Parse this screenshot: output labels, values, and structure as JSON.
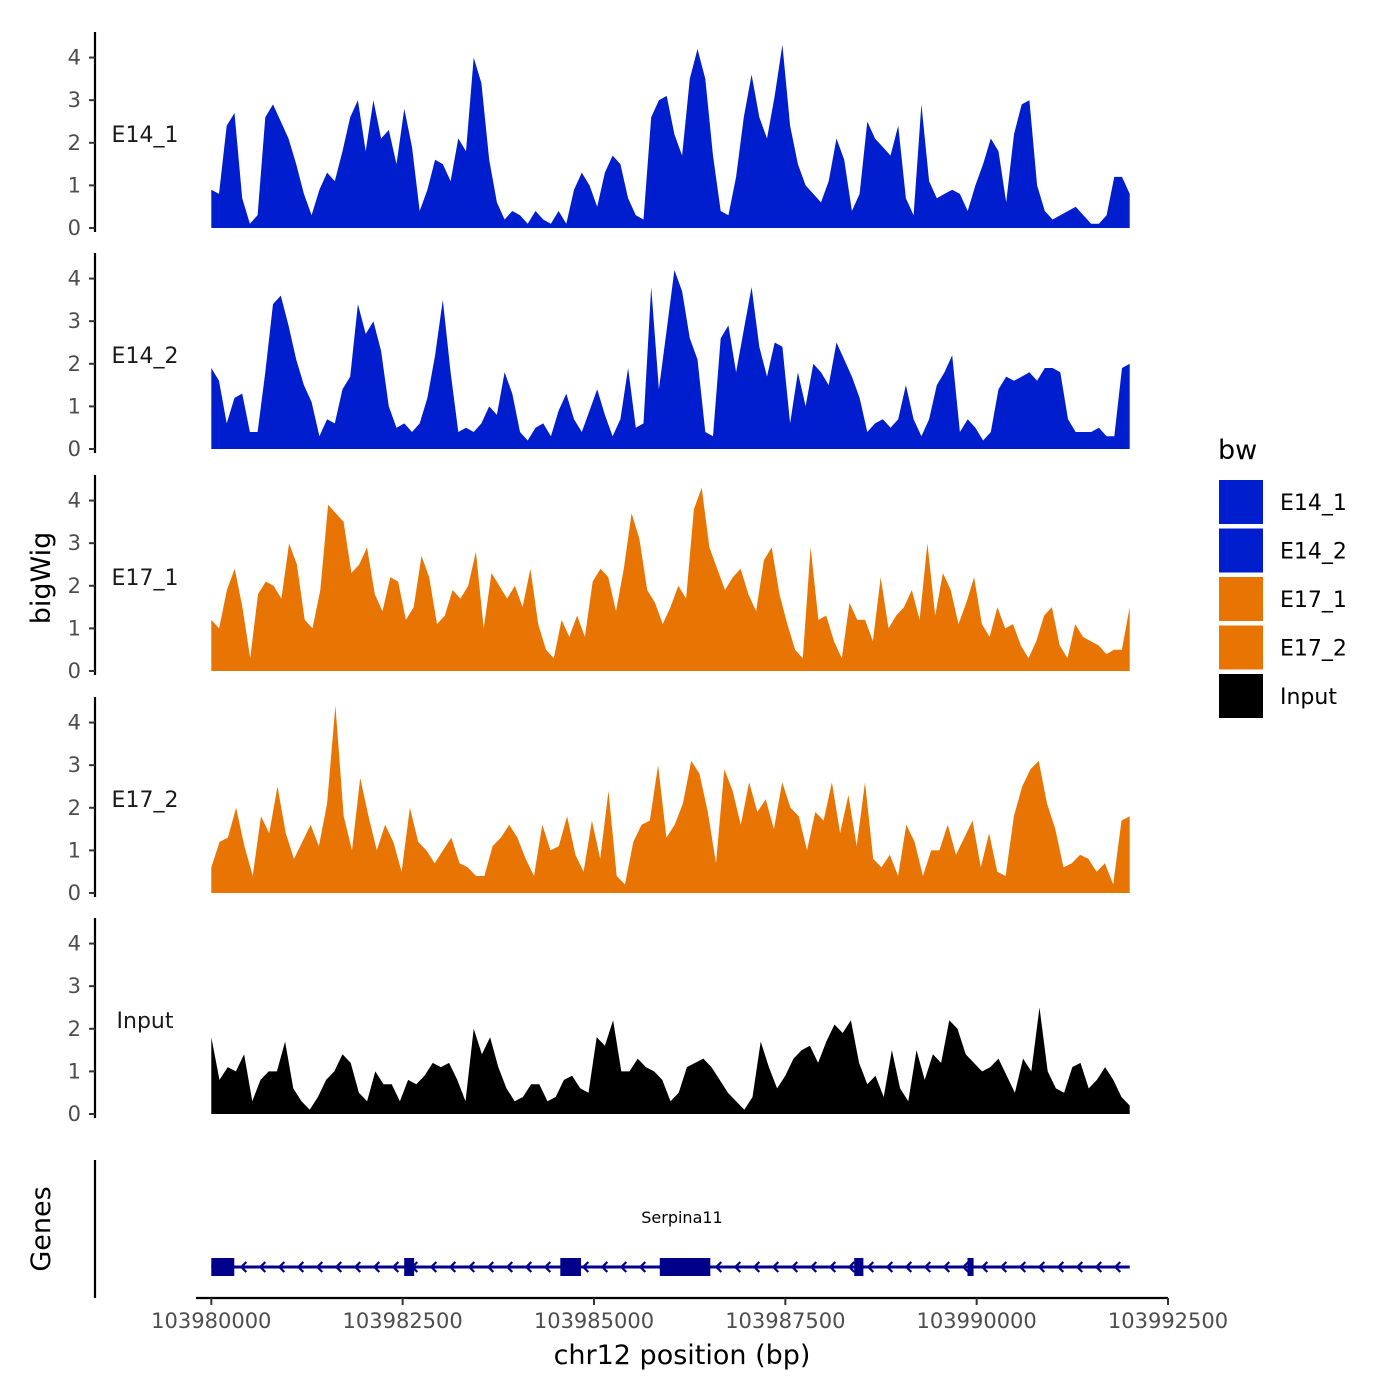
{
  "chart_data": {
    "type": "area",
    "ylabel": "bigWig",
    "xlabel": "chr12 position (bp)",
    "y_ticks": [
      0,
      1,
      2,
      3,
      4
    ],
    "ylim": [
      0,
      4.6
    ],
    "x_range": [
      103980000,
      103992000
    ],
    "xlim": [
      103979800,
      103992500
    ],
    "x_ticks": [
      103980000,
      103982500,
      103985000,
      103987500,
      103990000,
      103992500
    ],
    "x_tick_labels": [
      "103980000",
      "103982500",
      "103985000",
      "103987500",
      "103990000",
      "103992500"
    ],
    "legend": {
      "title": "bw",
      "entries": [
        {
          "label": "E14_1",
          "color": "#001ecd"
        },
        {
          "label": "E14_2",
          "color": "#001ecd"
        },
        {
          "label": "E17_1",
          "color": "#e87503"
        },
        {
          "label": "E17_2",
          "color": "#e87503"
        },
        {
          "label": "Input",
          "color": "#000000"
        }
      ]
    },
    "series": [
      {
        "name": "E14_1",
        "label": "E14_1",
        "color": "#001ecd",
        "values": [
          0.9,
          0.8,
          2.4,
          2.7,
          0.7,
          0.1,
          0.3,
          2.6,
          2.9,
          2.5,
          2.1,
          1.5,
          0.8,
          0.3,
          0.9,
          1.3,
          1.1,
          1.8,
          2.6,
          3.0,
          1.8,
          3.0,
          2.1,
          2.3,
          1.5,
          2.8,
          1.9,
          0.4,
          0.9,
          1.6,
          1.5,
          1.1,
          2.1,
          1.8,
          4.0,
          3.4,
          1.6,
          0.6,
          0.2,
          0.4,
          0.3,
          0.1,
          0.4,
          0.2,
          0.1,
          0.4,
          0.1,
          0.9,
          1.3,
          1.0,
          0.5,
          1.3,
          1.7,
          1.5,
          0.7,
          0.3,
          0.2,
          2.6,
          3.0,
          3.1,
          2.2,
          1.7,
          3.5,
          4.2,
          3.5,
          1.7,
          0.4,
          0.3,
          1.2,
          2.6,
          3.6,
          2.6,
          2.1,
          3.1,
          4.3,
          2.4,
          1.5,
          1.0,
          0.8,
          0.6,
          1.1,
          2.1,
          1.6,
          0.4,
          0.8,
          2.5,
          2.1,
          1.9,
          1.7,
          2.4,
          0.7,
          0.3,
          2.9,
          1.1,
          0.7,
          0.8,
          0.9,
          0.8,
          0.4,
          1.0,
          1.5,
          2.1,
          1.8,
          0.6,
          2.2,
          2.9,
          3.0,
          1.0,
          0.4,
          0.2,
          0.3,
          0.4,
          0.5,
          0.3,
          0.1,
          0.1,
          0.3,
          1.2,
          1.2,
          0.8
        ]
      },
      {
        "name": "E14_2",
        "label": "E14_2",
        "color": "#001ecd",
        "values": [
          1.9,
          1.6,
          0.6,
          1.2,
          1.3,
          0.4,
          0.4,
          1.8,
          3.4,
          3.6,
          2.9,
          2.1,
          1.5,
          1.1,
          0.3,
          0.7,
          0.6,
          1.4,
          1.7,
          3.4,
          2.7,
          3.0,
          2.3,
          1.0,
          0.5,
          0.6,
          0.4,
          0.6,
          1.2,
          2.2,
          3.5,
          1.8,
          0.4,
          0.5,
          0.4,
          0.6,
          1.0,
          0.8,
          1.8,
          1.3,
          0.4,
          0.2,
          0.5,
          0.6,
          0.3,
          0.9,
          1.3,
          0.7,
          0.4,
          0.9,
          1.4,
          0.8,
          0.3,
          0.7,
          1.9,
          0.5,
          0.6,
          3.8,
          1.4,
          2.8,
          4.2,
          3.7,
          2.6,
          2.1,
          0.4,
          0.3,
          2.6,
          2.9,
          1.8,
          2.8,
          3.8,
          2.4,
          1.7,
          2.5,
          2.4,
          0.6,
          1.8,
          1.0,
          2.0,
          1.8,
          1.5,
          2.5,
          2.1,
          1.7,
          1.2,
          0.4,
          0.6,
          0.7,
          0.5,
          0.7,
          1.5,
          0.7,
          0.3,
          0.7,
          1.5,
          1.8,
          2.2,
          0.4,
          0.7,
          0.5,
          0.2,
          0.4,
          1.4,
          1.7,
          1.6,
          1.7,
          1.8,
          1.6,
          1.9,
          1.9,
          1.8,
          0.7,
          0.4,
          0.4,
          0.4,
          0.5,
          0.3,
          0.3,
          1.9,
          2.0
        ]
      },
      {
        "name": "E17_1",
        "label": "E17_1",
        "color": "#e87503",
        "values": [
          1.2,
          1.0,
          1.9,
          2.4,
          1.5,
          0.3,
          1.8,
          2.1,
          2.0,
          1.7,
          3.0,
          2.5,
          1.2,
          1.0,
          1.9,
          3.9,
          3.7,
          3.5,
          2.3,
          2.5,
          2.9,
          1.8,
          1.4,
          2.2,
          2.1,
          1.2,
          1.5,
          2.7,
          2.2,
          1.1,
          1.3,
          1.9,
          1.7,
          2.0,
          2.8,
          1.0,
          2.3,
          2.0,
          1.7,
          2.0,
          1.5,
          2.4,
          1.1,
          0.5,
          0.3,
          1.2,
          0.8,
          1.3,
          0.8,
          2.1,
          2.4,
          2.2,
          1.4,
          2.4,
          3.7,
          3.1,
          1.9,
          1.6,
          1.1,
          1.5,
          2.0,
          1.7,
          3.8,
          4.3,
          2.9,
          2.4,
          1.9,
          2.2,
          2.4,
          1.8,
          1.4,
          2.6,
          2.9,
          1.8,
          1.1,
          0.5,
          0.3,
          2.9,
          1.2,
          1.3,
          0.7,
          0.3,
          1.6,
          1.2,
          1.2,
          0.7,
          2.2,
          1.0,
          1.3,
          1.5,
          1.9,
          1.2,
          3.0,
          1.3,
          2.3,
          1.9,
          1.1,
          1.6,
          2.2,
          1.1,
          0.8,
          1.5,
          1.0,
          1.1,
          0.6,
          0.3,
          0.7,
          1.3,
          1.5,
          0.6,
          0.3,
          1.1,
          0.8,
          0.7,
          0.6,
          0.4,
          0.5,
          0.5,
          1.5
        ]
      },
      {
        "name": "E17_2",
        "label": "E17_2",
        "color": "#e87503",
        "values": [
          0.6,
          1.2,
          1.3,
          2.0,
          1.1,
          0.4,
          1.8,
          1.4,
          2.5,
          1.4,
          0.8,
          1.2,
          1.6,
          1.1,
          2.1,
          4.4,
          1.8,
          1.0,
          2.7,
          1.8,
          1.0,
          1.6,
          1.2,
          0.5,
          2.0,
          1.2,
          1.0,
          0.7,
          1.0,
          1.3,
          0.7,
          0.6,
          0.4,
          0.4,
          1.1,
          1.3,
          1.6,
          1.3,
          0.8,
          0.4,
          1.6,
          1.0,
          1.1,
          1.8,
          0.9,
          0.5,
          1.7,
          0.8,
          2.4,
          0.4,
          0.2,
          1.2,
          1.6,
          1.7,
          3.0,
          1.3,
          1.6,
          2.1,
          3.1,
          2.8,
          1.9,
          0.7,
          2.9,
          2.4,
          1.6,
          2.6,
          1.9,
          2.2,
          1.5,
          2.6,
          2.0,
          1.8,
          1.0,
          1.9,
          1.7,
          2.6,
          1.4,
          2.3,
          1.1,
          2.6,
          0.8,
          0.6,
          0.9,
          0.4,
          1.6,
          1.2,
          0.4,
          1.0,
          1.0,
          1.6,
          0.9,
          1.3,
          1.7,
          0.6,
          1.4,
          0.5,
          0.4,
          1.8,
          2.5,
          2.9,
          3.1,
          2.1,
          1.5,
          0.6,
          0.7,
          0.9,
          0.8,
          0.5,
          0.7,
          0.2,
          1.7,
          1.8
        ]
      },
      {
        "name": "Input",
        "label": "Input",
        "color": "#000000",
        "values": [
          1.8,
          0.8,
          1.1,
          1.0,
          1.4,
          0.3,
          0.8,
          1.0,
          1.0,
          1.7,
          0.6,
          0.3,
          0.1,
          0.4,
          0.8,
          1.0,
          1.4,
          1.2,
          0.5,
          0.3,
          1.0,
          0.7,
          0.7,
          0.3,
          0.8,
          0.7,
          0.9,
          1.2,
          1.1,
          1.2,
          0.8,
          0.3,
          2.0,
          1.4,
          1.8,
          1.1,
          0.6,
          0.3,
          0.4,
          0.7,
          0.7,
          0.3,
          0.4,
          0.8,
          0.9,
          0.6,
          0.5,
          1.8,
          1.6,
          2.2,
          1.0,
          1.0,
          1.3,
          1.1,
          1.0,
          0.8,
          0.3,
          0.5,
          1.1,
          1.2,
          1.3,
          1.1,
          0.8,
          0.5,
          0.3,
          0.1,
          0.4,
          1.7,
          1.1,
          0.6,
          0.9,
          1.3,
          1.5,
          1.6,
          1.2,
          1.7,
          2.1,
          1.9,
          2.2,
          1.2,
          0.7,
          0.9,
          0.4,
          1.5,
          0.6,
          0.3,
          1.5,
          0.8,
          1.4,
          1.2,
          2.2,
          2.0,
          1.4,
          1.2,
          1.0,
          1.1,
          1.3,
          0.9,
          0.5,
          1.3,
          1.0,
          2.5,
          1.0,
          0.6,
          0.5,
          1.1,
          1.2,
          0.6,
          0.8,
          1.1,
          0.8,
          0.4,
          0.2
        ]
      }
    ],
    "gene_track": {
      "label": "Genes",
      "gene_name": "Serpina11",
      "strand": "-",
      "start": 103980000,
      "end": 103992000,
      "exons": [
        {
          "start": 103980000,
          "end": 103980300
        },
        {
          "start": 103982520,
          "end": 103982650
        },
        {
          "start": 103984560,
          "end": 103984830
        },
        {
          "start": 103985860,
          "end": 103986520
        },
        {
          "start": 103988400,
          "end": 103988520
        },
        {
          "start": 103989880,
          "end": 103989960
        }
      ]
    }
  }
}
